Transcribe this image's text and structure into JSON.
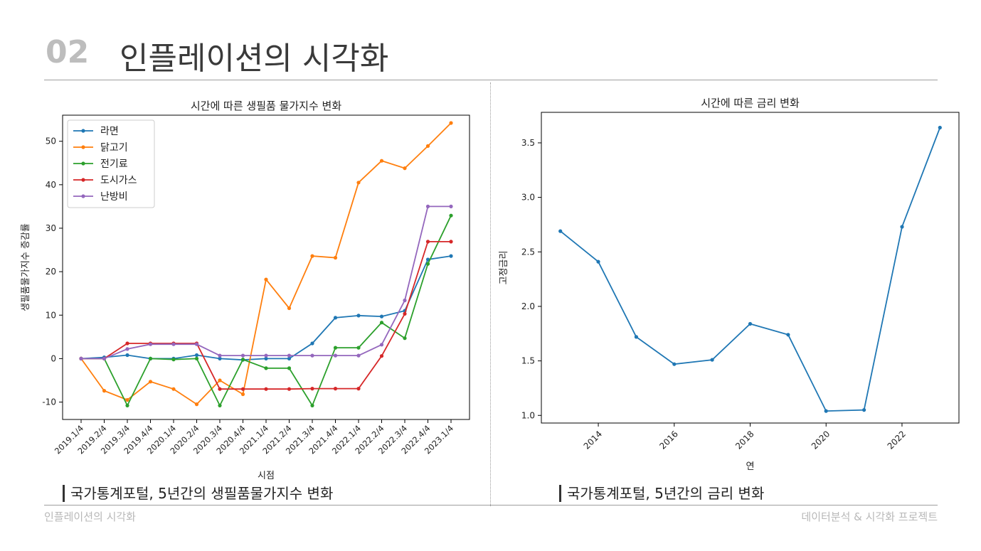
{
  "header": {
    "number": "02",
    "title": "인플레이션의 시각화"
  },
  "footer": {
    "left": "인플레이션의 시각화",
    "right": "데이터분석 & 시각화 프로젝트"
  },
  "captions": {
    "left": "국가통계포털, 5년간의 생필품물가지수 변화",
    "right": "국가통계포털, 5년간의 금리 변화"
  },
  "colors": {
    "blue": "#1f77b4",
    "orange": "#ff7f0e",
    "green": "#2ca02c",
    "red": "#d62728",
    "purple": "#9467bd"
  },
  "chart_data": [
    {
      "type": "line",
      "title": "시간에 따른 생필품 물가지수 변화",
      "xlabel": "시점",
      "ylabel": "생필품물가지수 증감률",
      "categories": [
        "2019.1/4",
        "2019.2/4",
        "2019.3/4",
        "2019.4/4",
        "2020.1/4",
        "2020.2/4",
        "2020.3/4",
        "2020.4/4",
        "2021.1/4",
        "2021.2/4",
        "2021.3/4",
        "2021.4/4",
        "2022.1/4",
        "2022.2/4",
        "2022.3/4",
        "2022.4/4",
        "2023.1/4"
      ],
      "ylim": [
        -14,
        56
      ],
      "yticks": [
        -10,
        0,
        10,
        20,
        30,
        40,
        50
      ],
      "yticklabels": [
        "-10",
        "0",
        "10",
        "20",
        "30",
        "40",
        "50"
      ],
      "legend": "top-left",
      "series": [
        {
          "name": "라면",
          "color": "#1f77b4",
          "values": [
            0,
            0.3,
            0.8,
            0,
            0,
            0.8,
            0,
            -0.3,
            0,
            0,
            3.5,
            9.4,
            9.9,
            9.7,
            11,
            22.8,
            23.6
          ]
        },
        {
          "name": "닭고기",
          "color": "#ff7f0e",
          "values": [
            0,
            -7.4,
            -9.5,
            -5.3,
            -7,
            -10.5,
            -5,
            -8.2,
            18.2,
            11.6,
            23.6,
            23.2,
            40.5,
            45.5,
            43.8,
            48.9,
            54.2
          ]
        },
        {
          "name": "전기료",
          "color": "#2ca02c",
          "values": [
            0,
            0,
            -10.8,
            0,
            -0.2,
            0,
            -10.8,
            -0.2,
            -2.2,
            -2.2,
            -10.8,
            2.5,
            2.5,
            8.3,
            4.7,
            21.8,
            32.9
          ]
        },
        {
          "name": "도시가스",
          "color": "#d62728",
          "values": [
            0,
            0,
            3.5,
            3.5,
            3.5,
            3.5,
            -7,
            -7,
            -7,
            -7,
            -6.9,
            -6.9,
            -6.9,
            0.6,
            10.3,
            26.9,
            26.9
          ]
        },
        {
          "name": "난방비",
          "color": "#9467bd",
          "values": [
            0,
            0,
            2.2,
            3.3,
            3.3,
            3.3,
            0.7,
            0.7,
            0.7,
            0.7,
            0.7,
            0.7,
            0.7,
            3.2,
            13.4,
            35,
            35
          ]
        }
      ]
    },
    {
      "type": "line",
      "title": "시간에 따른 금리 변화",
      "xlabel": "연",
      "ylabel": "고정금리",
      "x": [
        2013,
        2014,
        2015,
        2016,
        2017,
        2018,
        2019,
        2020,
        2021,
        2022,
        2023
      ],
      "values": [
        2.69,
        2.41,
        1.72,
        1.47,
        1.51,
        1.84,
        1.74,
        1.04,
        1.05,
        2.73,
        3.64
      ],
      "xlim": [
        2012.5,
        2023.5
      ],
      "ylim": [
        0.93,
        3.78
      ],
      "xticks": [
        2014,
        2016,
        2018,
        2020,
        2022
      ],
      "xticklabels": [
        "2014",
        "2016",
        "2018",
        "2020",
        "2022"
      ],
      "yticks": [
        1.0,
        1.5,
        2.0,
        2.5,
        3.0,
        3.5
      ],
      "yticklabels": [
        "1.0",
        "1.5",
        "2.0",
        "2.5",
        "3.0",
        "3.5"
      ],
      "color": "#1f77b4"
    }
  ]
}
